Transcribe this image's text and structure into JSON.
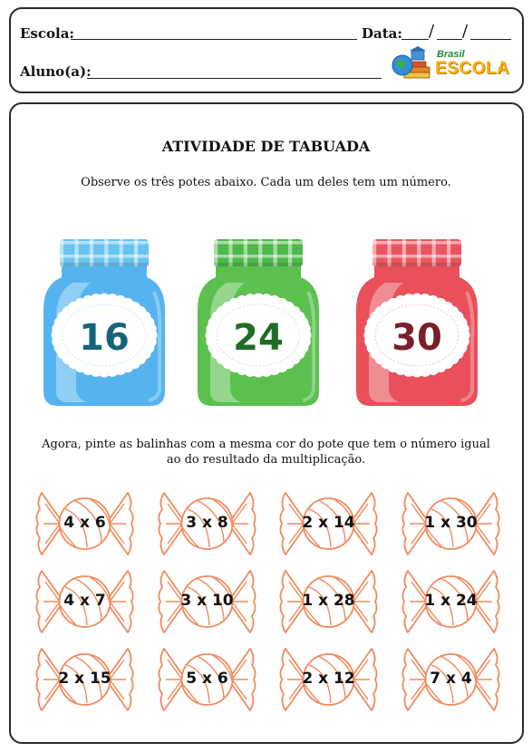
{
  "header": {
    "school_label": "Escola:",
    "date_label": "Data:",
    "date_slash": "/",
    "student_label": "Aluno(a):",
    "logo_top": "Brasil",
    "logo_main": "ESCOLA"
  },
  "activity": {
    "title": "ATIVIDADE DE TABUADA",
    "instruction1": "Observe os três potes abaixo. Cada um deles tem um número.",
    "instruction2": "Agora, pinte as balinhas com a mesma cor do pote que tem o número igual ao do resultado da multiplicação."
  },
  "jars": [
    {
      "number": "16",
      "color": "#55b4f0",
      "lid_color": "#68c3ef",
      "text_color": "#17637a"
    },
    {
      "number": "24",
      "color": "#5cc04f",
      "lid_color": "#4fb84a",
      "text_color": "#1f6d25"
    },
    {
      "number": "30",
      "color": "#e9505a",
      "lid_color": "#ea5560",
      "text_color": "#7a1f2c"
    }
  ],
  "candy_color": "#f08a5d",
  "candies": [
    [
      "4 x 6",
      "3 x 8",
      "2 x 14",
      "1 x 30"
    ],
    [
      "4 x 7",
      "3 x 10",
      "1 x 28",
      "1 x 24"
    ],
    [
      "2 x 15",
      "5 x 6",
      "2 x 12",
      "7 x 4"
    ]
  ]
}
